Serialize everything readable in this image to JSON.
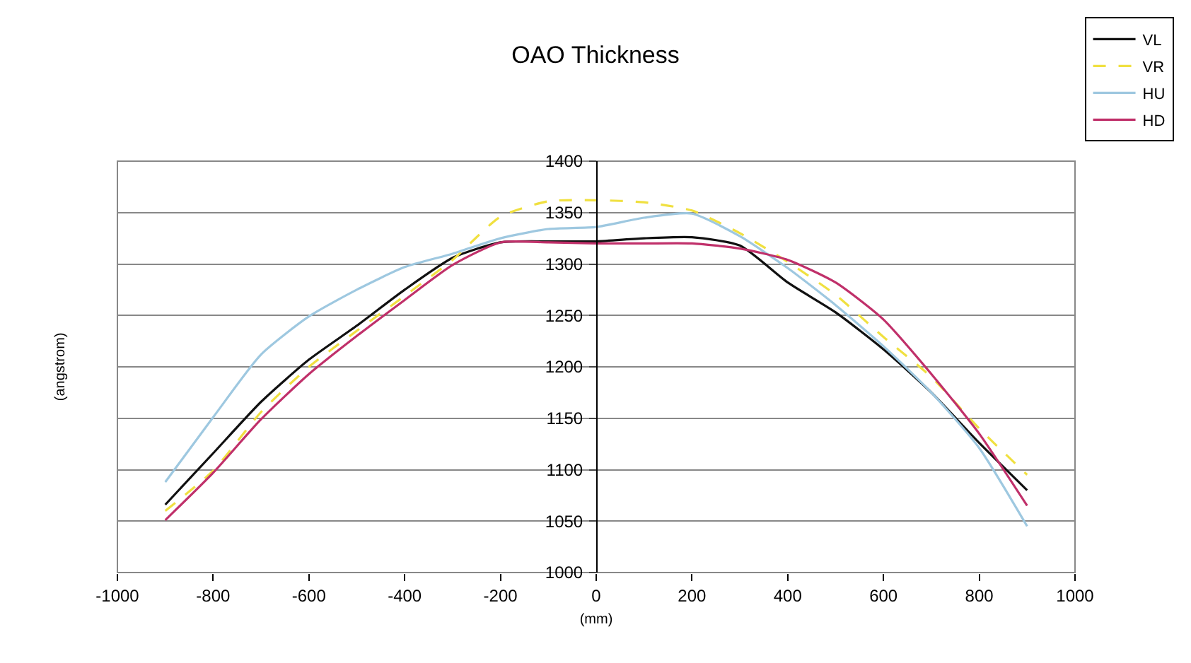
{
  "chart_data": {
    "type": "line",
    "title": "OAO Thickness",
    "xlabel": "(mm)",
    "ylabel": "(angstrom)",
    "x": [
      -900,
      -800,
      -700,
      -600,
      -500,
      -400,
      -300,
      -200,
      -100,
      0,
      100,
      200,
      300,
      400,
      500,
      600,
      700,
      800,
      900
    ],
    "series": [
      {
        "name": "VL",
        "color": "#111111",
        "line_style": "solid",
        "values": [
          1066,
          1116,
          1166,
          1207,
          1240,
          1275,
          1306,
          1321,
          1322,
          1322,
          1325,
          1326,
          1318,
          1282,
          1253,
          1217,
          1175,
          1126,
          1080
        ]
      },
      {
        "name": "VR",
        "color": "#f0e040",
        "line_style": "dashed",
        "values": [
          1060,
          1099,
          1156,
          1200,
          1235,
          1269,
          1304,
          1346,
          1361,
          1362,
          1360,
          1352,
          1330,
          1302,
          1270,
          1229,
          1190,
          1140,
          1095
        ]
      },
      {
        "name": "HU",
        "color": "#9ec8e0",
        "line_style": "solid",
        "values": [
          1088,
          1151,
          1212,
          1249,
          1275,
          1297,
          1310,
          1325,
          1334,
          1336,
          1345,
          1349,
          1327,
          1296,
          1260,
          1220,
          1175,
          1121,
          1045
        ]
      },
      {
        "name": "HD",
        "color": "#c0306a",
        "line_style": "solid",
        "values": [
          1051,
          1097,
          1149,
          1193,
          1230,
          1265,
          1299,
          1321,
          1321,
          1320,
          1320,
          1320,
          1315,
          1304,
          1282,
          1246,
          1193,
          1135,
          1065
        ]
      }
    ],
    "xlim": [
      -1000,
      1000
    ],
    "xticks": [
      -1000,
      -800,
      -600,
      -400,
      -200,
      0,
      200,
      400,
      600,
      800,
      1000
    ],
    "ylim": [
      1000,
      1400
    ],
    "yticks": [
      1000,
      1050,
      1100,
      1150,
      1200,
      1250,
      1300,
      1350,
      1400
    ],
    "grid": "y",
    "legend": "top right",
    "marker": "none"
  }
}
